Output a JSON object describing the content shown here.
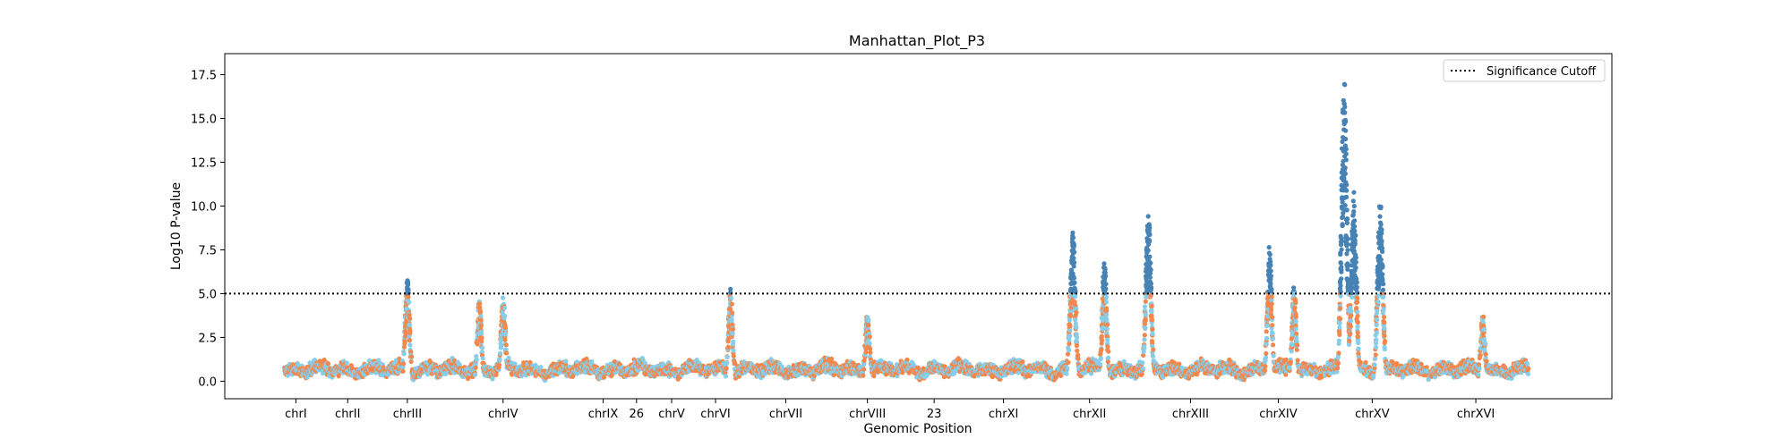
{
  "chart_data": {
    "type": "scatter",
    "title": "Manhattan_Plot_P3",
    "xlabel": "Genomic Position",
    "ylabel": "Log10 P-value",
    "ylim": [
      -1.0,
      18.7
    ],
    "xlim": [
      0,
      1580
    ],
    "grid": false,
    "legend": {
      "position": "top-right",
      "entries": [
        "Significance Cutoff"
      ]
    },
    "threshold": {
      "value": 5.0,
      "label": "Significance Cutoff",
      "style": "dotted",
      "color": "#000000"
    },
    "y_ticks": [
      {
        "value": 0.0,
        "label": "0.0"
      },
      {
        "value": 2.5,
        "label": "2.5"
      },
      {
        "value": 5.0,
        "label": "5.0"
      },
      {
        "value": 7.5,
        "label": "7.5"
      },
      {
        "value": 10.0,
        "label": "10.0"
      },
      {
        "value": 12.5,
        "label": "12.5"
      },
      {
        "value": 15.0,
        "label": "15.0"
      },
      {
        "value": 17.5,
        "label": "17.5"
      }
    ],
    "x_ticks": [
      {
        "value": 81,
        "label": "chrI"
      },
      {
        "value": 140,
        "label": "chrII"
      },
      {
        "value": 208,
        "label": "chrIII"
      },
      {
        "value": 317,
        "label": "chrIV"
      },
      {
        "value": 431,
        "label": "chrIX"
      },
      {
        "value": 469,
        "label": "26"
      },
      {
        "value": 509,
        "label": "chrV"
      },
      {
        "value": 559,
        "label": "chrVI"
      },
      {
        "value": 639,
        "label": "chrVII"
      },
      {
        "value": 732,
        "label": "chrVIII"
      },
      {
        "value": 808,
        "label": "23"
      },
      {
        "value": 887,
        "label": "chrXI"
      },
      {
        "value": 985,
        "label": "chrXII"
      },
      {
        "value": 1100,
        "label": "chrXIII"
      },
      {
        "value": 1200,
        "label": "chrXIV"
      },
      {
        "value": 1307,
        "label": "chrXV"
      },
      {
        "value": 1425,
        "label": "chrXVI"
      }
    ],
    "colors": {
      "alternating": [
        "#f4874b",
        "#87ceeb"
      ],
      "significant": "#4682b4"
    },
    "peaks": [
      {
        "x": 208,
        "y": 6.0
      },
      {
        "x": 290,
        "y": 4.6
      },
      {
        "x": 317,
        "y": 5.1
      },
      {
        "x": 576,
        "y": 5.2
      },
      {
        "x": 732,
        "y": 3.9
      },
      {
        "x": 966,
        "y": 8.6
      },
      {
        "x": 1002,
        "y": 6.9
      },
      {
        "x": 1052,
        "y": 9.6
      },
      {
        "x": 1190,
        "y": 7.7
      },
      {
        "x": 1218,
        "y": 5.5
      },
      {
        "x": 1275,
        "y": 17.8
      },
      {
        "x": 1286,
        "y": 10.7
      },
      {
        "x": 1316,
        "y": 10.3
      },
      {
        "x": 1433,
        "y": 3.8
      }
    ]
  }
}
